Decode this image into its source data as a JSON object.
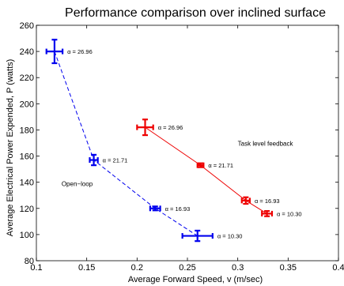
{
  "chart_data": {
    "type": "line",
    "title": "Performance comparison over inclined surface",
    "xlabel": "Average Forward Speed, v (m/sec)",
    "ylabel": "Average Electrical Power Expended, P (watts)",
    "xlim": [
      0.1,
      0.4
    ],
    "ylim": [
      80,
      260
    ],
    "xticks": [
      "0.1",
      "0.15",
      "0.2",
      "0.25",
      "0.3",
      "0.35",
      "0.4"
    ],
    "yticks": [
      "80",
      "100",
      "120",
      "140",
      "160",
      "180",
      "200",
      "220",
      "240",
      "260"
    ],
    "grid": false,
    "legend": "none",
    "series": [
      {
        "color": "#0000ee",
        "line_style": "dashed",
        "points": [
          {
            "x": 0.118,
            "y": 240,
            "xerr": 0.008,
            "yerr": 9,
            "label": "α = 26.96"
          },
          {
            "x": 0.157,
            "y": 157,
            "xerr": 0.004,
            "yerr": 4,
            "label": "α = 21.71"
          },
          {
            "x": 0.218,
            "y": 120,
            "xerr": 0.005,
            "yerr": 1.5,
            "label": "α = 16.93"
          },
          {
            "x": 0.26,
            "y": 99,
            "xerr": 0.015,
            "yerr": 4,
            "label": "α = 10.30"
          }
        ]
      },
      {
        "color": "#ee0000",
        "line_style": "solid",
        "points": [
          {
            "x": 0.208,
            "y": 182,
            "xerr": 0.008,
            "yerr": 6,
            "label": "α = 26.96"
          },
          {
            "x": 0.263,
            "y": 153,
            "xerr": 0.003,
            "yerr": 1.5,
            "label": "α = 21.71"
          },
          {
            "x": 0.308,
            "y": 126,
            "xerr": 0.004,
            "yerr": 2.5,
            "label": "α = 16.93"
          },
          {
            "x": 0.329,
            "y": 116,
            "xerr": 0.005,
            "yerr": 2,
            "label": "α = 10.30"
          }
        ]
      }
    ],
    "annotations": [
      {
        "text": "Task level feedback",
        "x": 0.3,
        "y": 168
      },
      {
        "text": "Open−loop",
        "x": 0.125,
        "y": 137
      }
    ]
  }
}
